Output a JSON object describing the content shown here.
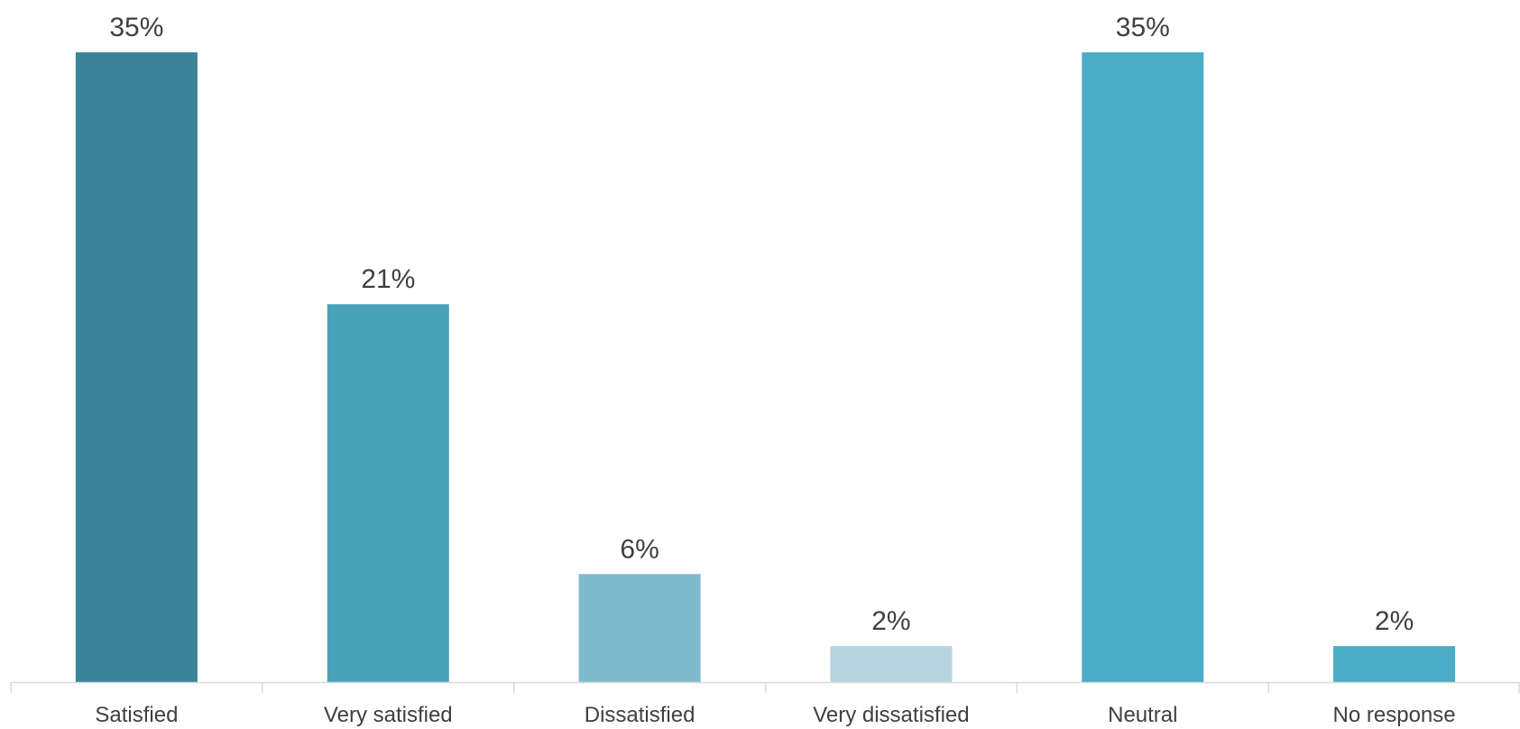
{
  "chart_data": {
    "type": "bar",
    "categories": [
      "Satisfied",
      "Very satisfied",
      "Dissatisfied",
      "Very dissatisfied",
      "Neutral",
      "No response"
    ],
    "values": [
      35,
      21,
      6,
      2,
      35,
      2
    ],
    "value_labels": [
      "35%",
      "21%",
      "6%",
      "2%",
      "35%",
      "2%"
    ],
    "colors": [
      "#3A8497",
      "#48A2BA",
      "#7FBACE",
      "#B6D4DF",
      "#4BACC6",
      "#4BACC6"
    ],
    "axis_color": "#D9D9D9",
    "title": "",
    "xlabel": "",
    "ylabel": "",
    "ylim": [
      0,
      35
    ],
    "grid": false,
    "legend": "none",
    "y_axis_visible": false
  }
}
